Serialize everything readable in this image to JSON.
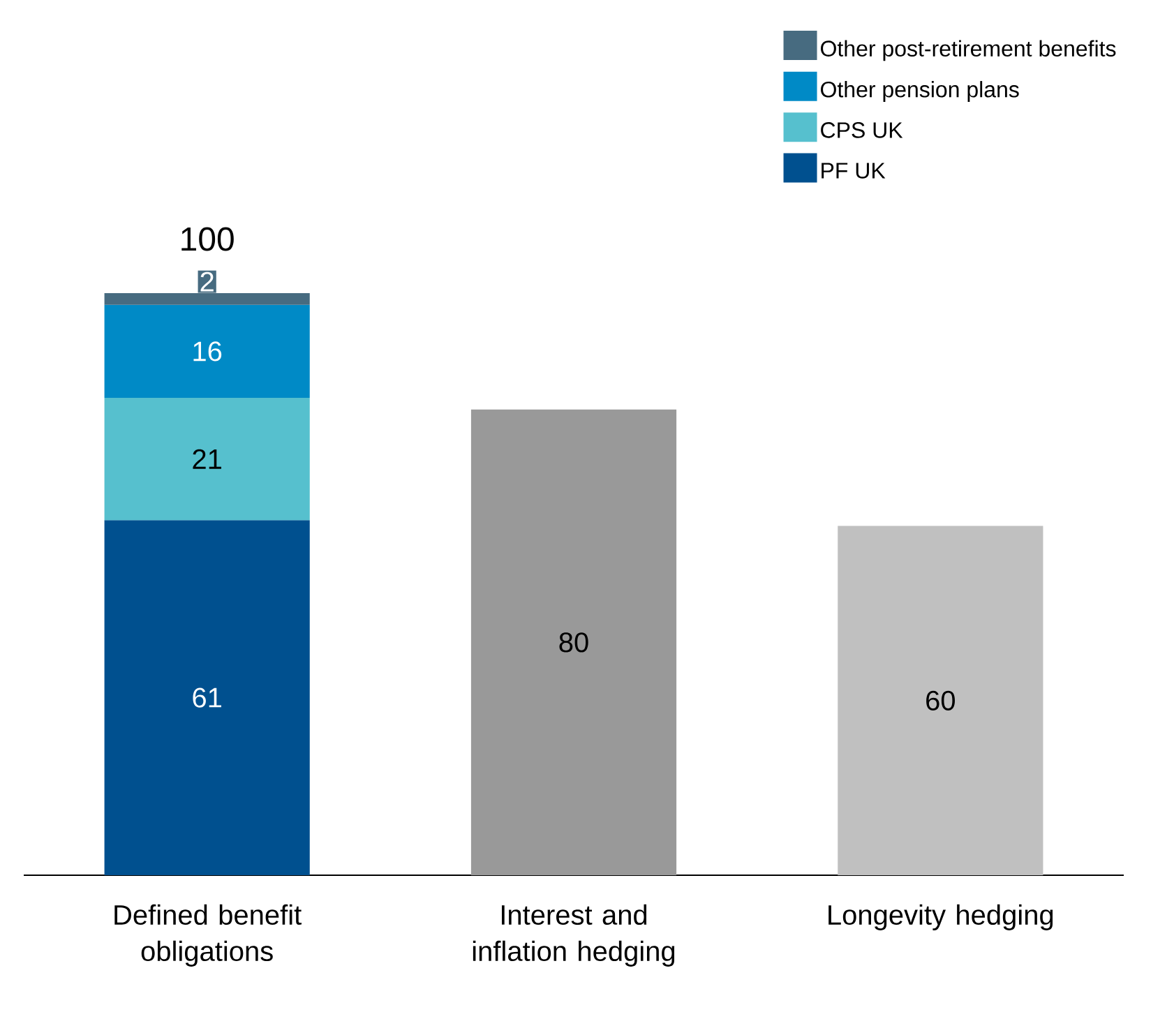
{
  "chart_data": {
    "type": "bar",
    "stacked": true,
    "categories": [
      "Defined benefit obligations",
      "Interest and inflation hedging",
      "Longevity hedging"
    ],
    "series": [
      {
        "name": "PF UK",
        "color": "#00508f",
        "values": [
          61,
          null,
          null
        ],
        "value_labels": [
          "61",
          null,
          null
        ]
      },
      {
        "name": "CPS UK",
        "color": "#56c0ce",
        "values": [
          21,
          null,
          null
        ],
        "value_labels": [
          "21",
          null,
          null
        ]
      },
      {
        "name": "Other pension plans",
        "color": "#008ac6",
        "values": [
          16,
          null,
          null
        ],
        "value_labels": [
          "16",
          null,
          null
        ]
      },
      {
        "name": "Other post-retirement benefits",
        "color": "#476b80",
        "values": [
          2,
          null,
          null
        ],
        "value_labels": [
          "2",
          null,
          null
        ]
      },
      {
        "colors": [
          null,
          "#999999",
          "#c0c0c0"
        ],
        "values": [
          null,
          80,
          60
        ],
        "value_labels": [
          null,
          "80",
          "60"
        ]
      }
    ],
    "totals": [
      "100",
      null,
      null
    ],
    "legend": "top right"
  }
}
